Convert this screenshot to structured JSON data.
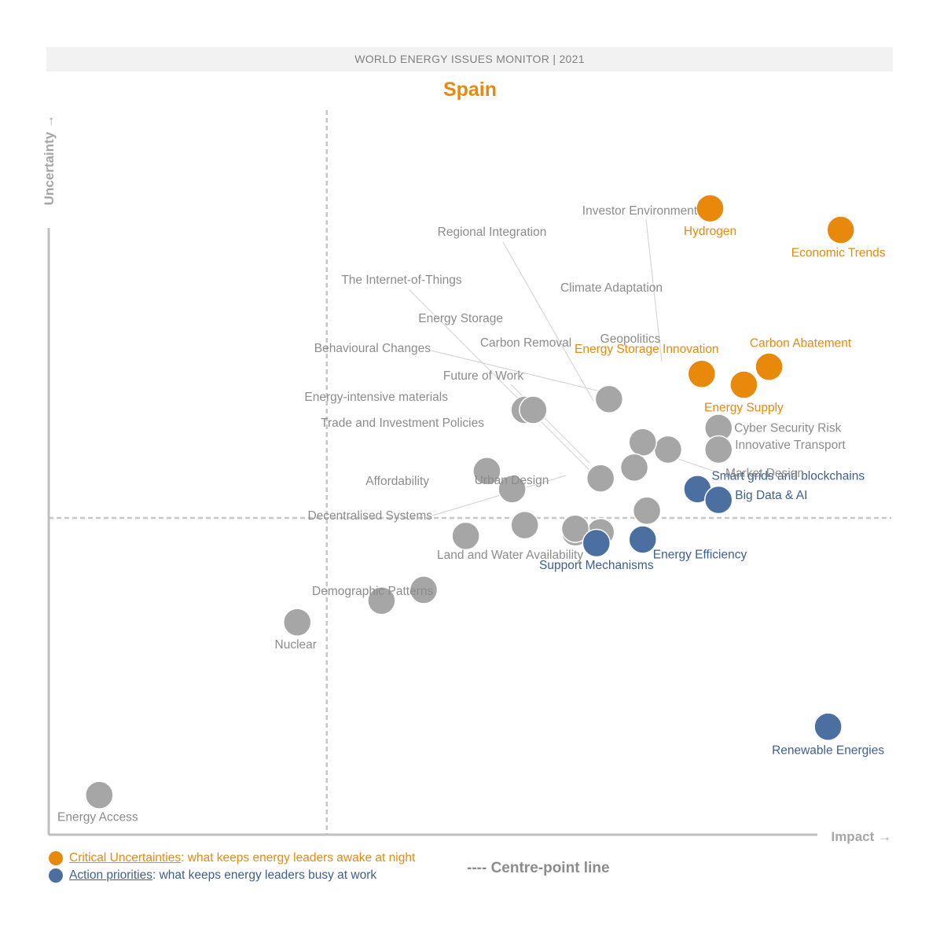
{
  "header": {
    "monitor_title": "WORLD ENERGY ISSUES MONITOR | 2021",
    "country": "Spain"
  },
  "chart_data": {
    "type": "scatter",
    "title": "Spain",
    "xlabel": "Impact →",
    "ylabel": "Uncertainty →",
    "xlim": [
      0,
      100
    ],
    "ylim": [
      0,
      100
    ],
    "centre_point": {
      "x": 33,
      "y": 44
    },
    "colors": {
      "critical": "#e8890c",
      "action": "#4a6fa0",
      "other": "#a6a6a6"
    },
    "points": [
      {
        "name": "Hydrogen",
        "x": 78.5,
        "y": 87,
        "category": "critical"
      },
      {
        "name": "Economic Trends",
        "x": 94,
        "y": 84,
        "category": "critical"
      },
      {
        "name": "Carbon Abatement",
        "x": 85.5,
        "y": 65,
        "category": "critical"
      },
      {
        "name": "Energy Storage Innovation",
        "x": 77.5,
        "y": 64,
        "category": "critical"
      },
      {
        "name": "Energy Supply",
        "x": 82.5,
        "y": 62.5,
        "category": "critical"
      },
      {
        "name": "Smart grids and blockchains",
        "x": 77,
        "y": 48,
        "category": "action"
      },
      {
        "name": "Big Data & AI",
        "x": 79.5,
        "y": 46.5,
        "category": "action"
      },
      {
        "name": "Energy Efficiency",
        "x": 70.5,
        "y": 41,
        "category": "action"
      },
      {
        "name": "Support Mechanisms",
        "x": 65,
        "y": 40.5,
        "category": "action"
      },
      {
        "name": "Renewable Energies",
        "x": 92.5,
        "y": 15,
        "category": "action"
      },
      {
        "name": "Investor Environment",
        "x": 73.5,
        "y": 53.5,
        "category": "other"
      },
      {
        "name": "Regional Integration",
        "x": 65.5,
        "y": 49.5,
        "category": "other"
      },
      {
        "name": "The Internet-of-Things",
        "x": 65.5,
        "y": 42,
        "category": "other"
      },
      {
        "name": "Climate Adaptation",
        "x": 66.5,
        "y": 60.5,
        "category": "other"
      },
      {
        "name": "Energy Storage",
        "x": 56.5,
        "y": 59,
        "category": "other"
      },
      {
        "name": "Carbon Removal",
        "x": 57.5,
        "y": 59,
        "category": "other"
      },
      {
        "name": "Geopolitics",
        "x": 70.5,
        "y": 54.5,
        "category": "other"
      },
      {
        "name": "Cyber Security Risk",
        "x": 79.5,
        "y": 56.5,
        "category": "other"
      },
      {
        "name": "Innovative Transport",
        "x": 79.5,
        "y": 53.5,
        "category": "other"
      },
      {
        "name": "Behavioural Changes",
        "x": 69.5,
        "y": 51,
        "category": "other"
      },
      {
        "name": "Future of Work",
        "x": 62.5,
        "y": 42,
        "category": "other"
      },
      {
        "name": "Energy-intensive materials",
        "x": 52,
        "y": 50.5,
        "category": "other"
      },
      {
        "name": "Trade and Investment Policies",
        "x": 55,
        "y": 48,
        "category": "other"
      },
      {
        "name": "Market Design",
        "x": 71,
        "y": 45,
        "category": "other"
      },
      {
        "name": "Affordability",
        "x": 49.5,
        "y": 41.5,
        "category": "other"
      },
      {
        "name": "Urban Design",
        "x": 56.5,
        "y": 43,
        "category": "other"
      },
      {
        "name": "Decentralised Systems",
        "x": 62.5,
        "y": 42.5,
        "category": "other"
      },
      {
        "name": "Land and Water Availability",
        "x": 44.5,
        "y": 34,
        "category": "other"
      },
      {
        "name": "Demographic Patterns",
        "x": 39.5,
        "y": 32.5,
        "category": "other"
      },
      {
        "name": "Nuclear",
        "x": 29.5,
        "y": 29.5,
        "category": "other"
      },
      {
        "name": "Energy Access",
        "x": 6,
        "y": 5.5,
        "category": "other"
      }
    ]
  },
  "legend": {
    "critical_link": "Critical Uncertainties",
    "critical_text": ": what keeps energy leaders awake at night",
    "action_link": "Action priorities",
    "action_text": ": what keeps energy leaders busy at work",
    "centre_line": "---- Centre-point line"
  }
}
